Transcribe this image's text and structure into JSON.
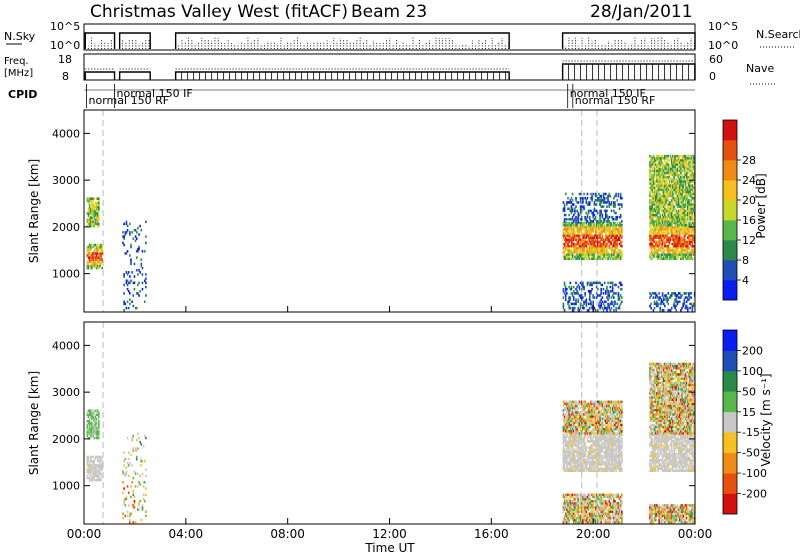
{
  "header": {
    "title": "Christmas Valley West (fitACF)",
    "beam": "Beam 23",
    "date": "28/Jan/2011"
  },
  "chart_data": [
    {
      "type": "line",
      "panel": "nsky-nsearch",
      "left_label": "N.Sky",
      "right_label": "N.Search",
      "left_ticks": [
        "10^5",
        "10^0"
      ],
      "right_ticks": [
        "10^5",
        "10^0"
      ],
      "xlim": [
        0,
        24
      ],
      "segments": [
        [
          0.05,
          1.2
        ],
        [
          1.4,
          2.6
        ],
        [
          3.6,
          16.7
        ],
        [
          18.8,
          24
        ]
      ]
    },
    {
      "type": "line",
      "panel": "freq-nave",
      "left_label": "Freq. [MHz]",
      "right_label": "Nave",
      "left_ticks": [
        "18",
        "8"
      ],
      "right_ticks": [
        "60",
        "0"
      ],
      "xlim": [
        0,
        24
      ],
      "segments": [
        [
          0.05,
          1.2
        ],
        [
          1.4,
          2.6
        ],
        [
          3.6,
          16.7
        ],
        [
          18.8,
          24
        ]
      ]
    },
    {
      "type": "table",
      "panel": "cpid",
      "label": "CPID",
      "entries": [
        {
          "t": 0.1,
          "text": "normal 150 RF",
          "row": 1
        },
        {
          "t": 1.2,
          "text": "normal 150 IF",
          "row": 0
        },
        {
          "t": 19.0,
          "text": "normal 150 IF",
          "row": 0
        },
        {
          "t": 19.2,
          "text": "normal 150 RF",
          "row": 1
        }
      ]
    },
    {
      "type": "heatmap",
      "panel": "power",
      "ylabel": "Slant Range [km]",
      "xlim": [
        0,
        24
      ],
      "ylim": [
        180,
        4500
      ],
      "yticks": [
        1000,
        2000,
        3000,
        4000
      ],
      "colorbar_label": "Power [dB]",
      "colorbar_ticks": [
        "4",
        "8",
        "12",
        "16",
        "20",
        "24",
        "28"
      ],
      "colorbar_colors": [
        "#0a1cf0",
        "#1f4fb5",
        "#2b8a4a",
        "#58b84a",
        "#c8d82a",
        "#f5c020",
        "#f08a18",
        "#e55010",
        "#d21010"
      ],
      "dashed_times": [
        0.75,
        19.55,
        20.15
      ],
      "regions": [
        {
          "t0": 0.1,
          "t1": 0.7,
          "r0": 1100,
          "r1": 1600,
          "level": "high"
        },
        {
          "t0": 0.1,
          "t1": 0.55,
          "r0": 2000,
          "r1": 2600,
          "level": "mid"
        },
        {
          "t0": 1.5,
          "t1": 2.4,
          "r0": 200,
          "r1": 2100,
          "level": "sparse"
        },
        {
          "t0": 18.8,
          "t1": 21.1,
          "r0": 1300,
          "r1": 2100,
          "level": "high"
        },
        {
          "t0": 18.8,
          "t1": 21.1,
          "r0": 2100,
          "r1": 2700,
          "level": "low"
        },
        {
          "t0": 18.8,
          "t1": 21.1,
          "r0": 200,
          "r1": 800,
          "level": "low"
        },
        {
          "t0": 22.2,
          "t1": 24.0,
          "r0": 1300,
          "r1": 2100,
          "level": "high"
        },
        {
          "t0": 22.2,
          "t1": 24.0,
          "r0": 2100,
          "r1": 3500,
          "level": "mid"
        },
        {
          "t0": 22.2,
          "t1": 24.0,
          "r0": 200,
          "r1": 600,
          "level": "low"
        }
      ]
    },
    {
      "type": "heatmap",
      "panel": "velocity",
      "ylabel": "Slant Range [km]",
      "xlabel": "Time UT",
      "xlim": [
        0,
        24
      ],
      "ylim": [
        180,
        4500
      ],
      "yticks": [
        1000,
        2000,
        3000,
        4000
      ],
      "xticks": [
        "00:00",
        "04:00",
        "08:00",
        "12:00",
        "16:00",
        "20:00",
        "00:00"
      ],
      "colorbar_label": "Velocity [m s⁻¹]",
      "colorbar_ticks": [
        "-200",
        "-100",
        "-50",
        "-15",
        "15",
        "50",
        "100",
        "200"
      ],
      "colorbar_colors": [
        "#d21010",
        "#e55010",
        "#f08a18",
        "#f5c020",
        "#c8c8c8",
        "#58b84a",
        "#2b8a4a",
        "#1f4fb5",
        "#0a1cf0"
      ],
      "dashed_times": [
        0.75,
        19.55,
        20.15
      ],
      "regions": [
        {
          "t0": 0.1,
          "t1": 0.7,
          "r0": 1100,
          "r1": 1600,
          "level": "grey"
        },
        {
          "t0": 0.1,
          "t1": 0.55,
          "r0": 2000,
          "r1": 2600,
          "level": "green"
        },
        {
          "t0": 1.5,
          "t1": 2.4,
          "r0": 200,
          "r1": 2100,
          "level": "sparse"
        },
        {
          "t0": 18.8,
          "t1": 21.1,
          "r0": 1300,
          "r1": 2100,
          "level": "grey"
        },
        {
          "t0": 18.8,
          "t1": 21.1,
          "r0": 2100,
          "r1": 2800,
          "level": "mixed"
        },
        {
          "t0": 18.8,
          "t1": 21.1,
          "r0": 200,
          "r1": 800,
          "level": "mixed"
        },
        {
          "t0": 22.2,
          "t1": 24.0,
          "r0": 1300,
          "r1": 2100,
          "level": "grey"
        },
        {
          "t0": 22.2,
          "t1": 24.0,
          "r0": 2100,
          "r1": 3600,
          "level": "mixed"
        },
        {
          "t0": 22.2,
          "t1": 24.0,
          "r0": 200,
          "r1": 600,
          "level": "mixed"
        }
      ]
    }
  ]
}
